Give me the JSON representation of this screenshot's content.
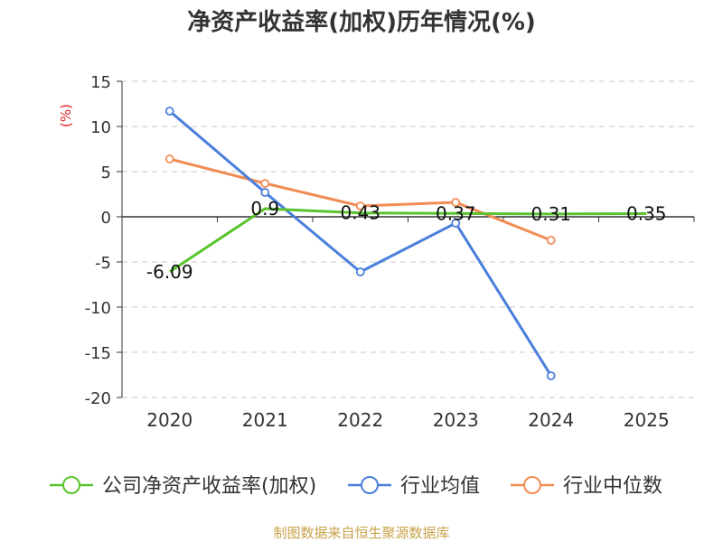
{
  "chart_data": {
    "type": "line",
    "title": "净资产收益率(加权)历年情况(%)",
    "ylabel": "(%)",
    "xlabel": "",
    "categories": [
      "2020",
      "2021",
      "2022",
      "2023",
      "2024",
      "2025"
    ],
    "ylim": [
      -20,
      15
    ],
    "yticks": [
      15,
      10,
      5,
      0,
      -5,
      -10,
      -15,
      -20
    ],
    "grid": true,
    "legend_position": "bottom",
    "series": [
      {
        "name": "公司净资产收益率(加权)",
        "color": "#5ac32e",
        "values": [
          -6.09,
          0.9,
          0.43,
          0.37,
          0.31,
          0.35
        ],
        "labels": [
          "-6.09",
          "0.9",
          "0.43",
          "0.37",
          "0.31",
          "0.35"
        ]
      },
      {
        "name": "行业均值",
        "color": "#4a7fdc",
        "values": [
          11.7,
          2.7,
          -6.1,
          -0.7,
          -17.6,
          null
        ]
      },
      {
        "name": "行业中位数",
        "color": "#f28c55",
        "values": [
          6.4,
          3.7,
          1.2,
          1.6,
          -2.6,
          null
        ]
      }
    ]
  },
  "footer": {
    "source": "制图数据来自恒生聚源数据库"
  }
}
